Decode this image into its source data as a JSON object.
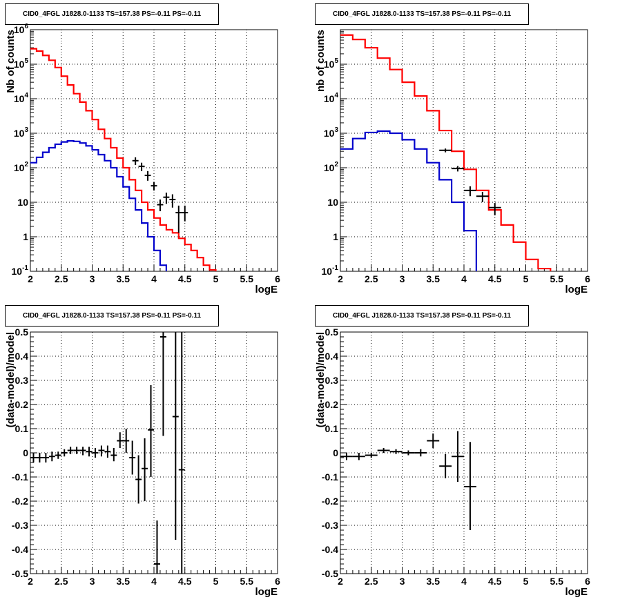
{
  "panels": [
    {
      "id": "tl",
      "title": "CID0_4FGL J1828.0-1133 TS=157.38 PS=-0.11 PS=-0.11",
      "ylabel": "Nb of counts",
      "xlabel": "logE",
      "yaxis_type": "log",
      "ytick_labels": [
        "10<sup>-1</sup>",
        "1",
        "10",
        "10<sup>2</sup>",
        "10<sup>3</sup>",
        "10<sup>4</sup>",
        "10<sup>5</sup>",
        "10<sup>6</sup>"
      ],
      "xtick_labels": [
        "2",
        "2.5",
        "3",
        "3.5",
        "4",
        "4.5",
        "5",
        "5.5",
        "6"
      ]
    },
    {
      "id": "tr",
      "title": "CID0_4FGL J1828.0-1133 TS=157.38 PS=-0.11 PS=-0.11",
      "ylabel": "nb of counts",
      "xlabel": "logE",
      "yaxis_type": "log",
      "ytick_labels": [
        "10<sup>-1</sup>",
        "1",
        "10",
        "10<sup>2</sup>",
        "10<sup>3</sup>",
        "10<sup>4</sup>",
        "10<sup>5</sup>"
      ],
      "xtick_labels": [
        "2",
        "2.5",
        "3",
        "3.5",
        "4",
        "4.5",
        "5",
        "5.5",
        "6"
      ]
    },
    {
      "id": "bl",
      "title": "CID0_4FGL J1828.0-1133 TS=157.38 PS=-0.11 PS=-0.11",
      "ylabel": "(data-model)/model",
      "xlabel": "logE",
      "yaxis_type": "linear",
      "ytick_labels": [
        "-0.5",
        "-0.4",
        "-0.3",
        "-0.2",
        "-0.1",
        "0",
        "0.1",
        "0.2",
        "0.3",
        "0.4",
        "0.5"
      ],
      "xtick_labels": [
        "2",
        "2.5",
        "3",
        "3.5",
        "4",
        "4.5",
        "5",
        "5.5",
        "6"
      ]
    },
    {
      "id": "br",
      "title": "CID0_4FGL J1828.0-1133 TS=157.38 PS=-0.11 PS=-0.11",
      "ylabel": "(data-model)/model",
      "xlabel": "logE",
      "yaxis_type": "linear",
      "ytick_labels": [
        "-0.5",
        "-0.4",
        "-0.3",
        "-0.2",
        "-0.1",
        "0",
        "0.1",
        "0.2",
        "0.3",
        "0.4",
        "0.5"
      ],
      "xtick_labels": [
        "2",
        "2.5",
        "3",
        "3.5",
        "4",
        "4.5",
        "5",
        "5.5",
        "6"
      ]
    }
  ],
  "colors": {
    "total_model": "#ff0000",
    "source_model": "#0000cc",
    "data": "#000000"
  },
  "chart_data": [
    {
      "type": "line",
      "panel": "tl",
      "xlim": [
        2,
        6
      ],
      "ylim": [
        0.1,
        1000000
      ],
      "yscale": "log",
      "grid": true,
      "bin_width": 0.1,
      "series": [
        {
          "color": "#ff0000",
          "x": [
            2.0,
            2.1,
            2.2,
            2.3,
            2.4,
            2.5,
            2.6,
            2.7,
            2.8,
            2.9,
            3.0,
            3.1,
            3.2,
            3.3,
            3.4,
            3.5,
            3.6,
            3.7,
            3.8,
            3.9,
            4.0,
            4.1,
            4.2,
            4.3,
            4.4,
            4.5,
            4.6,
            4.7,
            4.8,
            4.9,
            5.0,
            5.1,
            5.2,
            5.3,
            5.4,
            5.5,
            5.6,
            5.7,
            5.8,
            5.9
          ],
          "y": [
            280000,
            240000,
            180000,
            130000,
            80000,
            45000,
            25000,
            14000,
            8000,
            4500,
            2500,
            1300,
            700,
            380,
            190,
            100,
            45,
            22,
            10,
            6,
            3.5,
            2.2,
            1.6,
            1.3,
            0.9,
            0.6,
            0.4,
            0.25,
            0.15,
            0.11,
            0.05,
            0.05,
            0.05,
            0.05,
            0.05,
            0.05,
            0.05,
            0.05,
            0.05,
            0.05
          ]
        },
        {
          "color": "#0000cc",
          "x": [
            2.0,
            2.1,
            2.2,
            2.3,
            2.4,
            2.5,
            2.6,
            2.7,
            2.8,
            2.9,
            3.0,
            3.1,
            3.2,
            3.3,
            3.4,
            3.5,
            3.6,
            3.7,
            3.8,
            3.9,
            4.0,
            4.1,
            4.2,
            4.3,
            4.4
          ],
          "y": [
            140,
            200,
            280,
            380,
            480,
            560,
            600,
            580,
            520,
            430,
            330,
            240,
            160,
            100,
            55,
            28,
            13,
            6,
            2.5,
            1,
            0.4,
            0.15,
            0.05,
            0.05,
            0.05
          ]
        }
      ],
      "points": {
        "x": [
          3.7,
          3.8,
          3.9,
          4.0,
          4.1,
          4.2,
          4.3,
          4.4,
          4.5
        ],
        "y": [
          160,
          110,
          60,
          30,
          8.5,
          14,
          12,
          5,
          5
        ],
        "ylo": [
          120,
          80,
          42,
          22,
          5.5,
          9,
          7,
          1.3,
          2.8
        ],
        "yhi": [
          200,
          140,
          80,
          38,
          12,
          19,
          17,
          8,
          8
        ]
      }
    },
    {
      "type": "line",
      "panel": "tr",
      "xlim": [
        2,
        6
      ],
      "ylim": [
        0.1,
        1000000
      ],
      "yscale": "log",
      "grid": true,
      "bin_width": 0.2,
      "series": [
        {
          "color": "#ff0000",
          "x": [
            2.0,
            2.2,
            2.4,
            2.6,
            2.8,
            3.0,
            3.2,
            3.4,
            3.6,
            3.8,
            4.0,
            4.2,
            4.4,
            4.6,
            4.8,
            5.0,
            5.2,
            5.4,
            5.6,
            5.8
          ],
          "y": [
            700000,
            520000,
            300000,
            150000,
            70000,
            30000,
            12000,
            4500,
            1200,
            300,
            90,
            22,
            6,
            2.2,
            0.7,
            0.22,
            0.12,
            0.05,
            0.05,
            0.05
          ]
        },
        {
          "color": "#0000cc",
          "x": [
            2.0,
            2.2,
            2.4,
            2.6,
            2.8,
            3.0,
            3.2,
            3.4,
            3.6,
            3.8,
            4.0,
            4.2
          ],
          "y": [
            350,
            700,
            1050,
            1150,
            1000,
            650,
            350,
            140,
            45,
            10,
            1.5,
            0.05
          ]
        }
      ],
      "points": {
        "x": [
          3.7,
          3.9,
          4.1,
          4.3,
          4.5
        ],
        "y": [
          320,
          95,
          22,
          15,
          7
        ],
        "ylo": [
          280,
          78,
          15,
          10,
          4.2
        ],
        "yhi": [
          360,
          112,
          29,
          20,
          9.5
        ]
      }
    },
    {
      "type": "scatter",
      "panel": "bl",
      "xlim": [
        2,
        6
      ],
      "ylim": [
        -0.5,
        0.5
      ],
      "grid": true,
      "bin_width": 0.1,
      "points": {
        "x": [
          2.05,
          2.15,
          2.25,
          2.35,
          2.45,
          2.55,
          2.65,
          2.75,
          2.85,
          2.95,
          3.05,
          3.15,
          3.25,
          3.35,
          3.45,
          3.55,
          3.65,
          3.75,
          3.85,
          3.95,
          4.05,
          4.15,
          4.35,
          4.45
        ],
        "y": [
          -0.02,
          -0.02,
          -0.02,
          -0.015,
          -0.01,
          0.0,
          0.01,
          0.01,
          0.01,
          0.005,
          0.0,
          0.01,
          0.005,
          -0.01,
          0.05,
          0.05,
          -0.02,
          -0.11,
          -0.065,
          0.095,
          -0.46,
          0.48,
          0.15,
          -0.07
        ],
        "ylo": [
          -0.04,
          -0.04,
          -0.04,
          -0.035,
          -0.025,
          -0.015,
          -0.005,
          -0.005,
          -0.01,
          -0.015,
          -0.02,
          -0.015,
          -0.02,
          -0.035,
          0.02,
          0.0,
          -0.09,
          -0.21,
          -0.2,
          -0.1,
          -0.62,
          0.07,
          -0.36,
          -0.6
        ],
        "yhi": [
          0.0,
          0.0,
          0.0,
          0.005,
          0.005,
          0.015,
          0.025,
          0.025,
          0.025,
          0.025,
          0.02,
          0.03,
          0.03,
          0.02,
          0.085,
          0.1,
          0.05,
          -0.01,
          0.06,
          0.28,
          -0.28,
          0.6,
          0.6,
          0.6
        ]
      }
    },
    {
      "type": "scatter",
      "panel": "br",
      "xlim": [
        2,
        6
      ],
      "ylim": [
        -0.5,
        0.5
      ],
      "grid": true,
      "bin_width": 0.2,
      "points": {
        "x": [
          2.1,
          2.3,
          2.5,
          2.7,
          2.9,
          3.1,
          3.3,
          3.5,
          3.7,
          3.9,
          4.1
        ],
        "y": [
          -0.015,
          -0.015,
          -0.01,
          0.01,
          0.005,
          0.0,
          0.0,
          0.05,
          -0.055,
          -0.015,
          -0.14
        ],
        "ylo": [
          -0.03,
          -0.03,
          -0.02,
          0.0,
          -0.005,
          -0.01,
          -0.015,
          0.02,
          -0.105,
          -0.12,
          -0.32
        ],
        "yhi": [
          0.0,
          0.0,
          0.0,
          0.02,
          0.015,
          0.01,
          0.015,
          0.08,
          -0.005,
          0.09,
          0.045
        ]
      }
    }
  ]
}
